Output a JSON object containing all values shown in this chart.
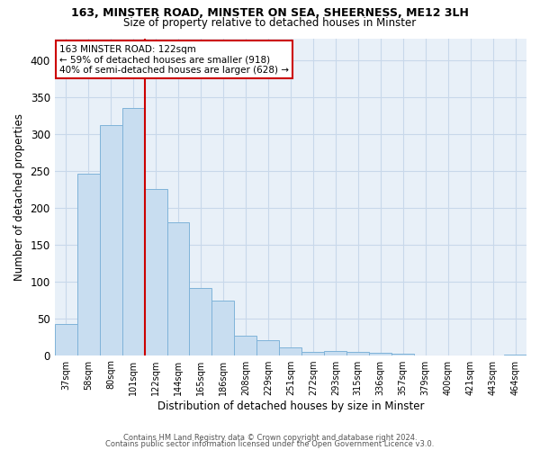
{
  "title_line1": "163, MINSTER ROAD, MINSTER ON SEA, SHEERNESS, ME12 3LH",
  "title_line2": "Size of property relative to detached houses in Minster",
  "xlabel": "Distribution of detached houses by size in Minster",
  "ylabel": "Number of detached properties",
  "categories": [
    "37sqm",
    "58sqm",
    "80sqm",
    "101sqm",
    "122sqm",
    "144sqm",
    "165sqm",
    "186sqm",
    "208sqm",
    "229sqm",
    "251sqm",
    "272sqm",
    "293sqm",
    "315sqm",
    "336sqm",
    "357sqm",
    "379sqm",
    "400sqm",
    "421sqm",
    "443sqm",
    "464sqm"
  ],
  "values": [
    42,
    246,
    312,
    335,
    226,
    180,
    91,
    74,
    26,
    20,
    10,
    4,
    5,
    4,
    3,
    2,
    0,
    0,
    0,
    0,
    1
  ],
  "bar_color": "#c8ddf0",
  "bar_edge_color": "#7fb3d9",
  "highlight_index": 4,
  "vline_color": "#cc0000",
  "annotation_text": "163 MINSTER ROAD: 122sqm\n← 59% of detached houses are smaller (918)\n40% of semi-detached houses are larger (628) →",
  "annotation_box_color": "#ffffff",
  "annotation_box_edge": "#cc0000",
  "ylim": [
    0,
    430
  ],
  "yticks": [
    0,
    50,
    100,
    150,
    200,
    250,
    300,
    350,
    400
  ],
  "grid_color": "#c8d8ea",
  "bg_color": "#e8f0f8",
  "footer_line1": "Contains HM Land Registry data © Crown copyright and database right 2024.",
  "footer_line2": "Contains public sector information licensed under the Open Government Licence v3.0."
}
